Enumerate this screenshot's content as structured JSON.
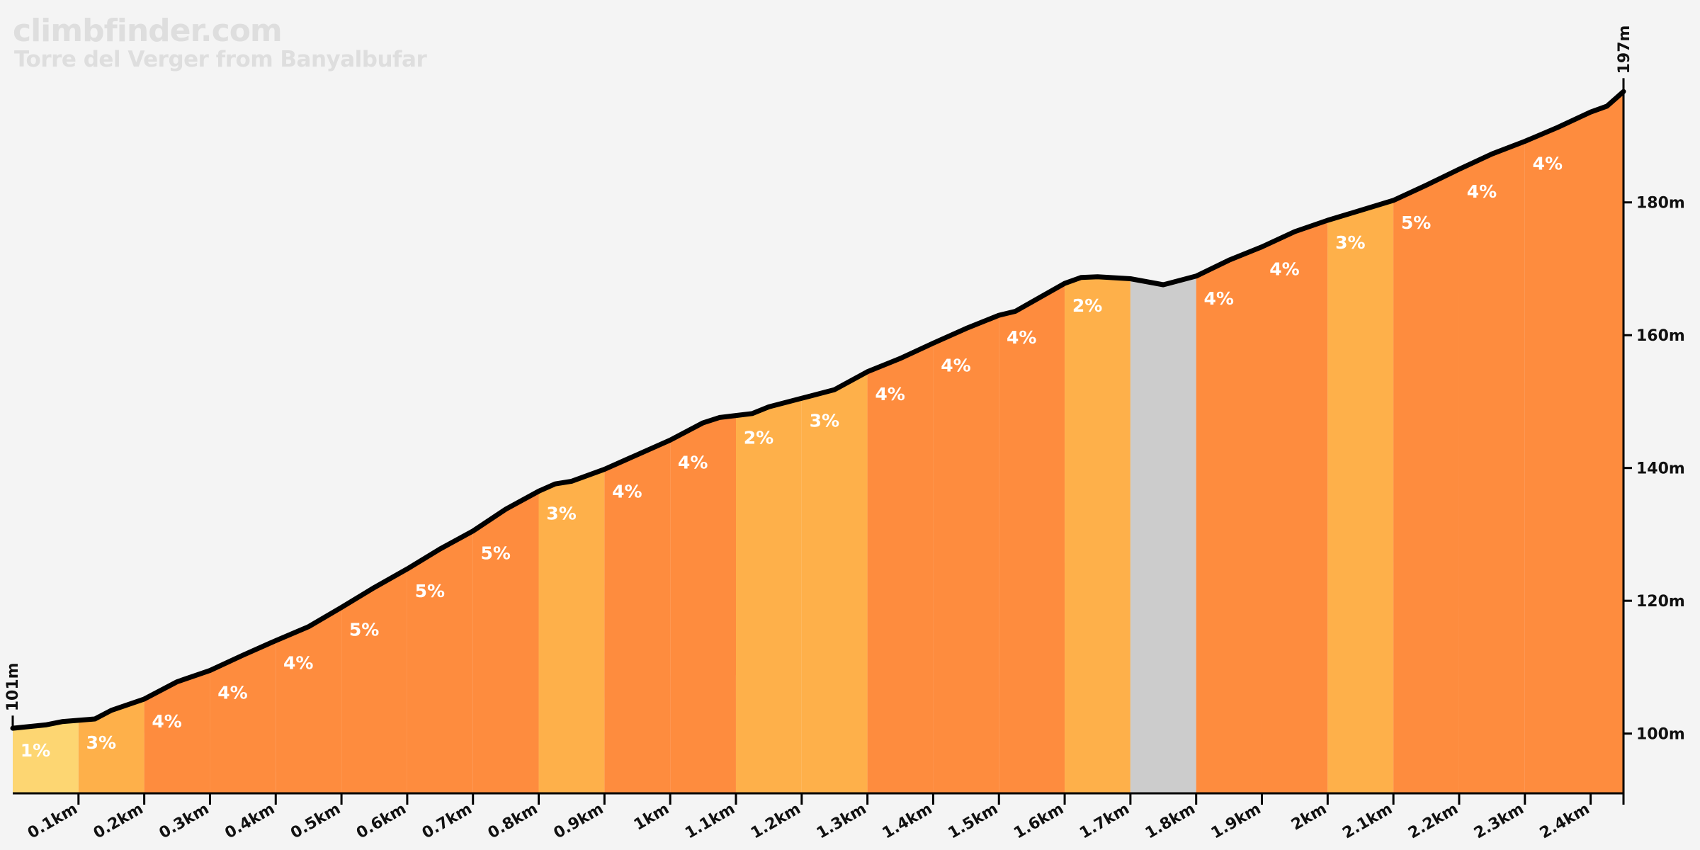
{
  "header": {
    "brand": "climbfinder.com",
    "climb_name": "Torre del Verger from Banyalbufar"
  },
  "chart_data": {
    "type": "area",
    "x_unit": "km",
    "y_unit": "m",
    "xlim": [
      0,
      2.45
    ],
    "ylim": [
      91,
      198
    ],
    "x_ticks": [
      {
        "value": 0.1,
        "label": "0.1km"
      },
      {
        "value": 0.2,
        "label": "0.2km"
      },
      {
        "value": 0.3,
        "label": "0.3km"
      },
      {
        "value": 0.4,
        "label": "0.4km"
      },
      {
        "value": 0.5,
        "label": "0.5km"
      },
      {
        "value": 0.6,
        "label": "0.6km"
      },
      {
        "value": 0.7,
        "label": "0.7km"
      },
      {
        "value": 0.8,
        "label": "0.8km"
      },
      {
        "value": 0.9,
        "label": "0.9km"
      },
      {
        "value": 1.0,
        "label": "1km"
      },
      {
        "value": 1.1,
        "label": "1.1km"
      },
      {
        "value": 1.2,
        "label": "1.2km"
      },
      {
        "value": 1.3,
        "label": "1.3km"
      },
      {
        "value": 1.4,
        "label": "1.4km"
      },
      {
        "value": 1.5,
        "label": "1.5km"
      },
      {
        "value": 1.6,
        "label": "1.6km"
      },
      {
        "value": 1.7,
        "label": "1.7km"
      },
      {
        "value": 1.8,
        "label": "1.8km"
      },
      {
        "value": 1.9,
        "label": "1.9km"
      },
      {
        "value": 2.0,
        "label": "2km"
      },
      {
        "value": 2.1,
        "label": "2.1km"
      },
      {
        "value": 2.2,
        "label": "2.2km"
      },
      {
        "value": 2.3,
        "label": "2.3km"
      },
      {
        "value": 2.4,
        "label": "2.4km"
      }
    ],
    "y_ticks": [
      {
        "value": 100,
        "label": "100m"
      },
      {
        "value": 120,
        "label": "120m"
      },
      {
        "value": 140,
        "label": "140m"
      },
      {
        "value": 160,
        "label": "160m"
      },
      {
        "value": 180,
        "label": "180m"
      }
    ],
    "start_label": {
      "value": 101,
      "label": "101m"
    },
    "end_label": {
      "value": 197,
      "label": "197m"
    },
    "profile": [
      [
        0,
        100.8
      ],
      [
        0.05,
        101.3
      ],
      [
        0.075,
        101.8
      ],
      [
        0.1,
        102
      ],
      [
        0.125,
        102.2
      ],
      [
        0.15,
        103.5
      ],
      [
        0.2,
        105.2
      ],
      [
        0.25,
        107.8
      ],
      [
        0.3,
        109.5
      ],
      [
        0.35,
        111.8
      ],
      [
        0.4,
        114
      ],
      [
        0.45,
        116.1
      ],
      [
        0.5,
        119
      ],
      [
        0.55,
        122
      ],
      [
        0.6,
        124.8
      ],
      [
        0.65,
        127.8
      ],
      [
        0.7,
        130.5
      ],
      [
        0.75,
        133.8
      ],
      [
        0.8,
        136.5
      ],
      [
        0.825,
        137.6
      ],
      [
        0.85,
        138
      ],
      [
        0.9,
        139.8
      ],
      [
        0.95,
        142
      ],
      [
        1.0,
        144.2
      ],
      [
        1.05,
        146.8
      ],
      [
        1.075,
        147.6
      ],
      [
        1.1,
        147.9
      ],
      [
        1.125,
        148.2
      ],
      [
        1.15,
        149.2
      ],
      [
        1.2,
        150.5
      ],
      [
        1.25,
        151.8
      ],
      [
        1.3,
        154.5
      ],
      [
        1.35,
        156.5
      ],
      [
        1.4,
        158.8
      ],
      [
        1.45,
        161
      ],
      [
        1.5,
        163
      ],
      [
        1.525,
        163.6
      ],
      [
        1.55,
        165
      ],
      [
        1.6,
        167.8
      ],
      [
        1.625,
        168.7
      ],
      [
        1.65,
        168.8
      ],
      [
        1.7,
        168.5
      ],
      [
        1.75,
        167.6
      ],
      [
        1.8,
        168.9
      ],
      [
        1.85,
        171.3
      ],
      [
        1.9,
        173.3
      ],
      [
        1.95,
        175.6
      ],
      [
        2.0,
        177.3
      ],
      [
        2.05,
        178.8
      ],
      [
        2.1,
        180.3
      ],
      [
        2.15,
        182.6
      ],
      [
        2.2,
        185
      ],
      [
        2.25,
        187.3
      ],
      [
        2.3,
        189.2
      ],
      [
        2.35,
        191.3
      ],
      [
        2.4,
        193.6
      ],
      [
        2.425,
        194.5
      ],
      [
        2.45,
        196.7
      ]
    ],
    "segments": [
      {
        "x0": 0.0,
        "x1": 0.1,
        "grade": "1%",
        "color": "#fdd672"
      },
      {
        "x0": 0.1,
        "x1": 0.2,
        "grade": "3%",
        "color": "#feb04a"
      },
      {
        "x0": 0.2,
        "x1": 0.3,
        "grade": "4%",
        "color": "#fe8c3e"
      },
      {
        "x0": 0.3,
        "x1": 0.4,
        "grade": "4%",
        "color": "#fe8c3e"
      },
      {
        "x0": 0.4,
        "x1": 0.5,
        "grade": "4%",
        "color": "#fe8c3e"
      },
      {
        "x0": 0.5,
        "x1": 0.6,
        "grade": "5%",
        "color": "#fe8c3e"
      },
      {
        "x0": 0.6,
        "x1": 0.7,
        "grade": "5%",
        "color": "#fe8c3e"
      },
      {
        "x0": 0.7,
        "x1": 0.8,
        "grade": "5%",
        "color": "#fe8c3e"
      },
      {
        "x0": 0.8,
        "x1": 0.9,
        "grade": "3%",
        "color": "#feb04a"
      },
      {
        "x0": 0.9,
        "x1": 1.0,
        "grade": "4%",
        "color": "#fe8c3e"
      },
      {
        "x0": 1.0,
        "x1": 1.1,
        "grade": "4%",
        "color": "#fe8c3e"
      },
      {
        "x0": 1.1,
        "x1": 1.2,
        "grade": "2%",
        "color": "#feb04a"
      },
      {
        "x0": 1.2,
        "x1": 1.3,
        "grade": "3%",
        "color": "#feb04a"
      },
      {
        "x0": 1.3,
        "x1": 1.4,
        "grade": "4%",
        "color": "#fe8c3e"
      },
      {
        "x0": 1.4,
        "x1": 1.5,
        "grade": "4%",
        "color": "#fe8c3e"
      },
      {
        "x0": 1.5,
        "x1": 1.6,
        "grade": "4%",
        "color": "#fe8c3e"
      },
      {
        "x0": 1.6,
        "x1": 1.7,
        "grade": "2%",
        "color": "#feb04a"
      },
      {
        "x0": 1.7,
        "x1": 1.8,
        "grade": "",
        "color": "#cccccc"
      },
      {
        "x0": 1.8,
        "x1": 1.9,
        "grade": "4%",
        "color": "#fe8c3e"
      },
      {
        "x0": 1.9,
        "x1": 2.0,
        "grade": "4%",
        "color": "#fe8c3e"
      },
      {
        "x0": 2.0,
        "x1": 2.1,
        "grade": "3%",
        "color": "#feb04a"
      },
      {
        "x0": 2.1,
        "x1": 2.2,
        "grade": "5%",
        "color": "#fe8c3e"
      },
      {
        "x0": 2.2,
        "x1": 2.3,
        "grade": "4%",
        "color": "#fe8c3e"
      },
      {
        "x0": 2.3,
        "x1": 2.45,
        "grade": "4%",
        "color": "#fe8c3e"
      }
    ],
    "colors": {
      "line": "#000000",
      "grade_text": "#ffffff",
      "axis": "#000000",
      "watermark": "#dedede"
    }
  }
}
